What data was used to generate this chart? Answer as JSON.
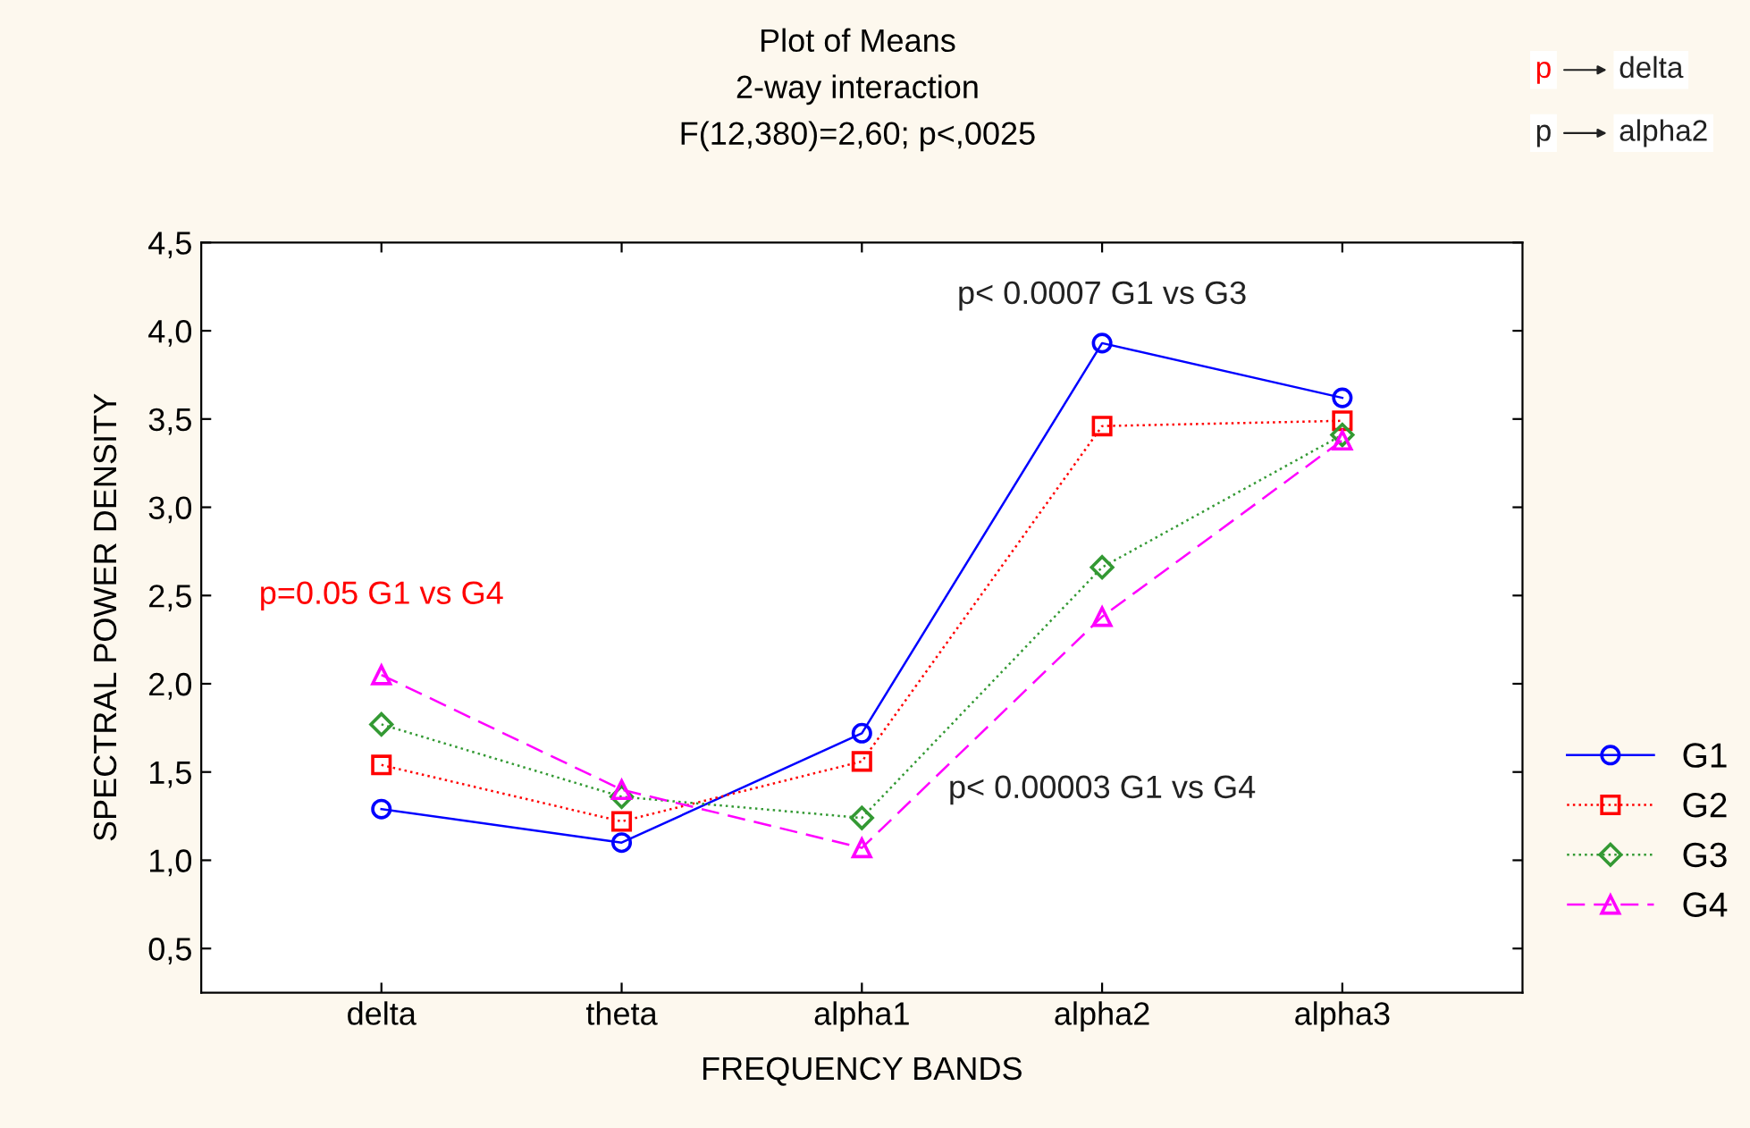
{
  "chart_data": {
    "type": "line",
    "title": "Plot of Means\n2-way interaction\nF(12,380)=2,60; p<,0025",
    "xlabel": "FREQUENCY BANDS",
    "ylabel": "SPECTRAL POWER DENSITY",
    "categories": [
      "delta",
      "theta",
      "alpha1",
      "alpha2",
      "alpha3"
    ],
    "series": [
      {
        "name": "G1",
        "color": "#0000ff",
        "marker": "circle",
        "line_style": "solid",
        "values": [
          1.29,
          1.1,
          1.72,
          3.93,
          3.62
        ]
      },
      {
        "name": "G2",
        "color": "#ff0000",
        "marker": "square",
        "line_style": "dotted",
        "values": [
          1.54,
          1.22,
          1.56,
          3.46,
          3.49
        ]
      },
      {
        "name": "G3",
        "color": "#339933",
        "marker": "diamond",
        "line_style": "dotted",
        "values": [
          1.77,
          1.36,
          1.24,
          2.66,
          3.41
        ]
      },
      {
        "name": "G4",
        "color": "#ff00ff",
        "marker": "triangle",
        "line_style": "dashed",
        "values": [
          2.05,
          1.4,
          1.07,
          2.38,
          3.38
        ]
      }
    ],
    "ylim": [
      0.25,
      4.5
    ],
    "yticks": [
      {
        "value": 0.5,
        "label": "0,5"
      },
      {
        "value": 1.0,
        "label": "1,0"
      },
      {
        "value": 1.5,
        "label": "1,5"
      },
      {
        "value": 2.0,
        "label": "2,0"
      },
      {
        "value": 2.5,
        "label": "2,5"
      },
      {
        "value": 3.0,
        "label": "3,0"
      },
      {
        "value": 3.5,
        "label": "3,5"
      },
      {
        "value": 4.0,
        "label": "4,0"
      },
      {
        "value": 4.5,
        "label": "4,5"
      }
    ],
    "annotations": [
      "p=0.05 G1 vs G4",
      "p< 0.0007 G1 vs G3",
      "p< 0.00003 G1 vs G4",
      "p",
      "delta",
      "p",
      "alpha2"
    ],
    "grid": false,
    "legend": "bottom right"
  }
}
